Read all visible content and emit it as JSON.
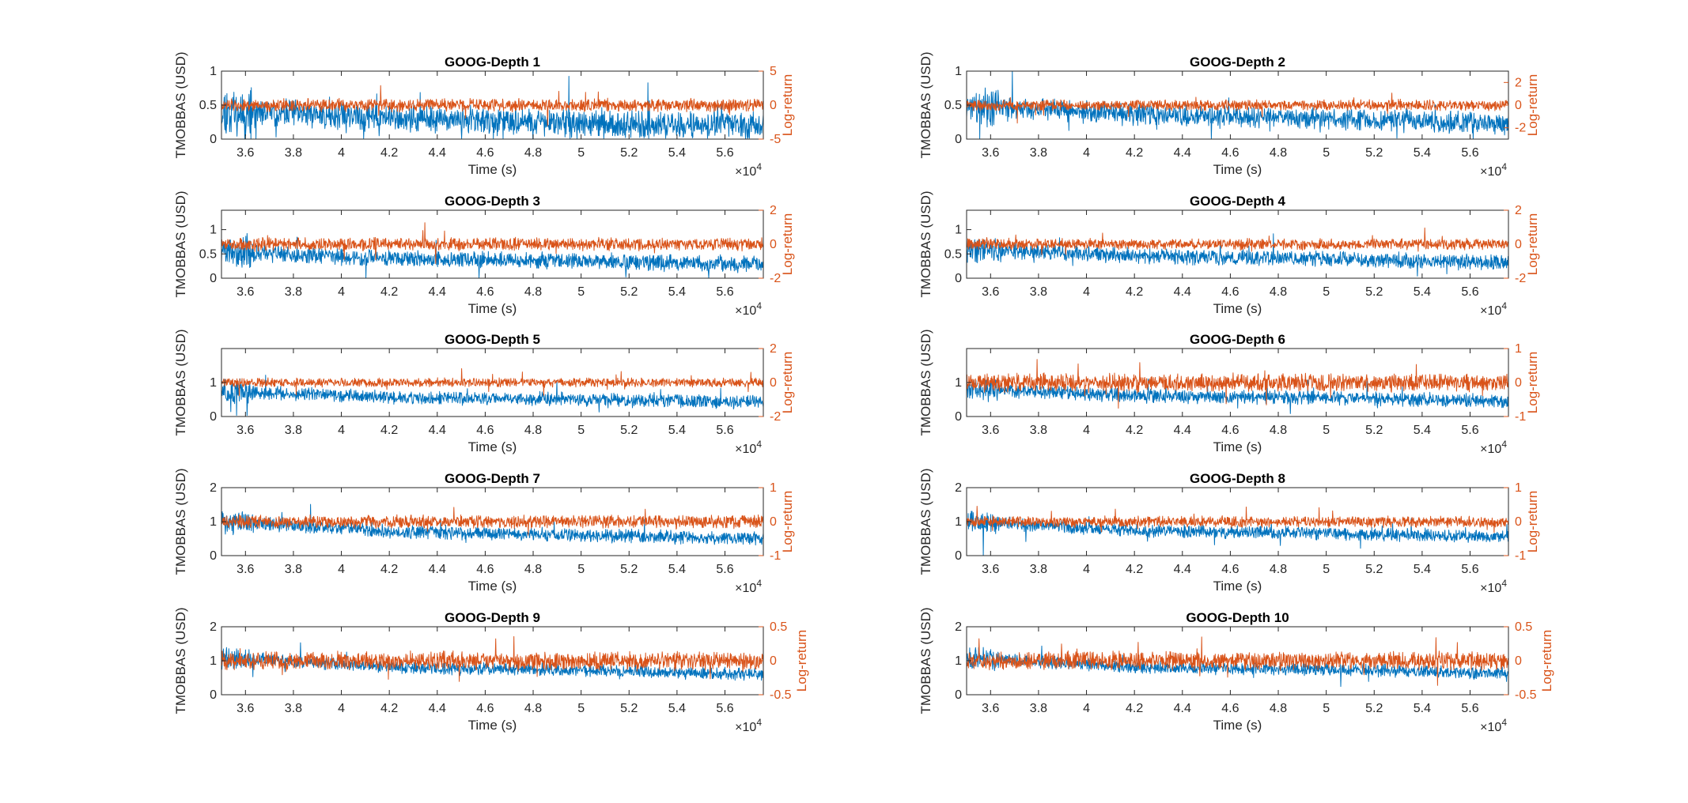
{
  "figure": {
    "background": "#ffffff",
    "colors": {
      "left_series": "#0072BD",
      "right_series": "#D95319",
      "axis": "#262626"
    }
  },
  "chart_data": [
    {
      "type": "line",
      "title": "GOOG-Depth 1",
      "xlabel": "Time (s)",
      "ylabel_left": "TMOBBAS (USD)",
      "ylabel_right": "Log-return",
      "xlim": [
        35000,
        57600
      ],
      "x_ticks": [
        36000,
        38000,
        40000,
        42000,
        44000,
        46000,
        48000,
        50000,
        52000,
        54000,
        56000
      ],
      "x_tick_labels": [
        "3.6",
        "3.8",
        "4",
        "4.2",
        "4.4",
        "4.6",
        "4.8",
        "5",
        "5.2",
        "5.4",
        "5.6"
      ],
      "x_exponent": "×10^4",
      "ylim_left": [
        0,
        1
      ],
      "y_ticks_left": [
        0,
        0.5,
        1
      ],
      "y_tick_labels_left": [
        "0",
        "0.5",
        "1"
      ],
      "ylim_right": [
        -5,
        5
      ],
      "y_ticks_right": [
        -5,
        0,
        5
      ],
      "y_tick_labels_right": [
        "-5",
        "0",
        "5"
      ],
      "series": [
        {
          "name": "TMOBBAS",
          "axis": "left",
          "baseline": [
            0.42,
            0.3,
            0.22,
            0.2
          ],
          "noise": 0.15,
          "seed": 11
        },
        {
          "name": "Log-return",
          "axis": "right",
          "baseline": [
            0,
            0,
            0,
            0
          ],
          "noise": 0.7,
          "seed": 12
        }
      ]
    },
    {
      "type": "line",
      "title": "GOOG-Depth 2",
      "xlabel": "Time (s)",
      "ylabel_left": "TMOBBAS (USD)",
      "ylabel_right": "Log-return",
      "xlim": [
        35000,
        57600
      ],
      "x_ticks": [
        36000,
        38000,
        40000,
        42000,
        44000,
        46000,
        48000,
        50000,
        52000,
        54000,
        56000
      ],
      "x_tick_labels": [
        "3.6",
        "3.8",
        "4",
        "4.2",
        "4.4",
        "4.6",
        "4.8",
        "5",
        "5.2",
        "5.4",
        "5.6"
      ],
      "x_exponent": "×10^4",
      "ylim_left": [
        0,
        1
      ],
      "y_ticks_left": [
        0,
        0.5,
        1
      ],
      "y_tick_labels_left": [
        "0",
        "0.5",
        "1"
      ],
      "ylim_right": [
        -3,
        3
      ],
      "y_ticks_right": [
        -2,
        0,
        2
      ],
      "y_tick_labels_right": [
        "-2",
        "0",
        "2"
      ],
      "series": [
        {
          "name": "TMOBBAS",
          "axis": "left",
          "baseline": [
            0.5,
            0.35,
            0.3,
            0.22
          ],
          "noise": 0.12,
          "seed": 21
        },
        {
          "name": "Log-return",
          "axis": "right",
          "baseline": [
            0,
            0,
            0,
            0
          ],
          "noise": 0.35,
          "seed": 22
        }
      ]
    },
    {
      "type": "line",
      "title": "GOOG-Depth 3",
      "xlabel": "Time (s)",
      "ylabel_left": "TMOBBAS (USD)",
      "ylabel_right": "Log-return",
      "xlim": [
        35000,
        57600
      ],
      "x_ticks": [
        36000,
        38000,
        40000,
        42000,
        44000,
        46000,
        48000,
        50000,
        52000,
        54000,
        56000
      ],
      "x_tick_labels": [
        "3.6",
        "3.8",
        "4",
        "4.2",
        "4.4",
        "4.6",
        "4.8",
        "5",
        "5.2",
        "5.4",
        "5.6"
      ],
      "x_exponent": "×10^4",
      "ylim_left": [
        0,
        1.4
      ],
      "y_ticks_left": [
        0,
        0.5,
        1
      ],
      "y_tick_labels_left": [
        "0",
        "0.5",
        "1"
      ],
      "ylim_right": [
        -2,
        2
      ],
      "y_ticks_right": [
        -2,
        0,
        2
      ],
      "y_tick_labels_right": [
        "-2",
        "0",
        "2"
      ],
      "series": [
        {
          "name": "TMOBBAS",
          "axis": "left",
          "baseline": [
            0.55,
            0.4,
            0.35,
            0.28
          ],
          "noise": 0.13,
          "seed": 31
        },
        {
          "name": "Log-return",
          "axis": "right",
          "baseline": [
            0,
            0,
            0,
            0
          ],
          "noise": 0.28,
          "seed": 32
        }
      ]
    },
    {
      "type": "line",
      "title": "GOOG-Depth 4",
      "xlabel": "Time (s)",
      "ylabel_left": "TMOBBAS (USD)",
      "ylabel_right": "Log-return",
      "xlim": [
        35000,
        57600
      ],
      "x_ticks": [
        36000,
        38000,
        40000,
        42000,
        44000,
        46000,
        48000,
        50000,
        52000,
        54000,
        56000
      ],
      "x_tick_labels": [
        "3.6",
        "3.8",
        "4",
        "4.2",
        "4.4",
        "4.6",
        "4.8",
        "5",
        "5.2",
        "5.4",
        "5.6"
      ],
      "x_exponent": "×10^4",
      "ylim_left": [
        0,
        1.4
      ],
      "y_ticks_left": [
        0,
        0.5,
        1
      ],
      "y_tick_labels_left": [
        "0",
        "0.5",
        "1"
      ],
      "ylim_right": [
        -2,
        2
      ],
      "y_ticks_right": [
        -2,
        0,
        2
      ],
      "y_tick_labels_right": [
        "-2",
        "0",
        "2"
      ],
      "series": [
        {
          "name": "TMOBBAS",
          "axis": "left",
          "baseline": [
            0.6,
            0.45,
            0.4,
            0.32
          ],
          "noise": 0.12,
          "seed": 41
        },
        {
          "name": "Log-return",
          "axis": "right",
          "baseline": [
            0,
            0,
            0,
            0
          ],
          "noise": 0.24,
          "seed": 42
        }
      ]
    },
    {
      "type": "line",
      "title": "GOOG-Depth 5",
      "xlabel": "Time (s)",
      "ylabel_left": "TMOBBAS (USD)",
      "ylabel_right": "Log-return",
      "xlim": [
        35000,
        57600
      ],
      "x_ticks": [
        36000,
        38000,
        40000,
        42000,
        44000,
        46000,
        48000,
        50000,
        52000,
        54000,
        56000
      ],
      "x_tick_labels": [
        "3.6",
        "3.8",
        "4",
        "4.2",
        "4.4",
        "4.6",
        "4.8",
        "5",
        "5.2",
        "5.4",
        "5.6"
      ],
      "x_exponent": "×10^4",
      "ylim_left": [
        0,
        2
      ],
      "y_ticks_left": [
        0,
        1
      ],
      "y_tick_labels_left": [
        "0",
        "1"
      ],
      "ylim_right": [
        -2,
        2
      ],
      "y_ticks_right": [
        -2,
        0,
        2
      ],
      "y_tick_labels_right": [
        "-2",
        "0",
        "2"
      ],
      "series": [
        {
          "name": "TMOBBAS",
          "axis": "left",
          "baseline": [
            0.75,
            0.55,
            0.5,
            0.42
          ],
          "noise": 0.15,
          "seed": 51
        },
        {
          "name": "Log-return",
          "axis": "right",
          "baseline": [
            0,
            0,
            0,
            0
          ],
          "noise": 0.2,
          "seed": 52
        }
      ]
    },
    {
      "type": "line",
      "title": "GOOG-Depth 6",
      "xlabel": "Time (s)",
      "ylabel_left": "TMOBBAS (USD)",
      "ylabel_right": "Log-return",
      "xlim": [
        35000,
        57600
      ],
      "x_ticks": [
        36000,
        38000,
        40000,
        42000,
        44000,
        46000,
        48000,
        50000,
        52000,
        54000,
        56000
      ],
      "x_tick_labels": [
        "3.6",
        "3.8",
        "4",
        "4.2",
        "4.4",
        "4.6",
        "4.8",
        "5",
        "5.2",
        "5.4",
        "5.6"
      ],
      "x_exponent": "×10^4",
      "ylim_left": [
        0,
        2
      ],
      "y_ticks_left": [
        0,
        1
      ],
      "y_tick_labels_left": [
        "0",
        "1"
      ],
      "ylim_right": [
        -1,
        1
      ],
      "y_ticks_right": [
        -1,
        0,
        1
      ],
      "y_tick_labels_right": [
        "-1",
        "0",
        "1"
      ],
      "series": [
        {
          "name": "TMOBBAS",
          "axis": "left",
          "baseline": [
            0.8,
            0.6,
            0.55,
            0.45
          ],
          "noise": 0.15,
          "seed": 61
        },
        {
          "name": "Log-return",
          "axis": "right",
          "baseline": [
            0,
            0,
            0,
            0
          ],
          "noise": 0.2,
          "seed": 62
        }
      ]
    },
    {
      "type": "line",
      "title": "GOOG-Depth 7",
      "xlabel": "Time (s)",
      "ylabel_left": "TMOBBAS (USD)",
      "ylabel_right": "Log-return",
      "xlim": [
        35000,
        57600
      ],
      "x_ticks": [
        36000,
        38000,
        40000,
        42000,
        44000,
        46000,
        48000,
        50000,
        52000,
        54000,
        56000
      ],
      "x_tick_labels": [
        "3.6",
        "3.8",
        "4",
        "4.2",
        "4.4",
        "4.6",
        "4.8",
        "5",
        "5.2",
        "5.4",
        "5.6"
      ],
      "x_exponent": "×10^4",
      "ylim_left": [
        0,
        2
      ],
      "y_ticks_left": [
        0,
        1,
        2
      ],
      "y_tick_labels_left": [
        "0",
        "1",
        "2"
      ],
      "ylim_right": [
        -1,
        1
      ],
      "y_ticks_right": [
        -1,
        0,
        1
      ],
      "y_tick_labels_right": [
        "-1",
        "0",
        "1"
      ],
      "series": [
        {
          "name": "TMOBBAS",
          "axis": "left",
          "baseline": [
            1.0,
            0.7,
            0.6,
            0.5
          ],
          "noise": 0.15,
          "seed": 71
        },
        {
          "name": "Log-return",
          "axis": "right",
          "baseline": [
            0,
            0,
            0,
            0
          ],
          "noise": 0.14,
          "seed": 72
        }
      ]
    },
    {
      "type": "line",
      "title": "GOOG-Depth 8",
      "xlabel": "Time (s)",
      "ylabel_left": "TMOBBAS (USD)",
      "ylabel_right": "Log-return",
      "xlim": [
        35000,
        57600
      ],
      "x_ticks": [
        36000,
        38000,
        40000,
        42000,
        44000,
        46000,
        48000,
        50000,
        52000,
        54000,
        56000
      ],
      "x_tick_labels": [
        "3.6",
        "3.8",
        "4",
        "4.2",
        "4.4",
        "4.6",
        "4.8",
        "5",
        "5.2",
        "5.4",
        "5.6"
      ],
      "x_exponent": "×10^4",
      "ylim_left": [
        0,
        2
      ],
      "y_ticks_left": [
        0,
        1,
        2
      ],
      "y_tick_labels_left": [
        "0",
        "1",
        "2"
      ],
      "ylim_right": [
        -1,
        1
      ],
      "y_ticks_right": [
        -1,
        0,
        1
      ],
      "y_tick_labels_right": [
        "-1",
        "0",
        "1"
      ],
      "series": [
        {
          "name": "TMOBBAS",
          "axis": "left",
          "baseline": [
            1.0,
            0.72,
            0.65,
            0.55
          ],
          "noise": 0.14,
          "seed": 81
        },
        {
          "name": "Log-return",
          "axis": "right",
          "baseline": [
            0,
            0,
            0,
            0
          ],
          "noise": 0.12,
          "seed": 82
        }
      ]
    },
    {
      "type": "line",
      "title": "GOOG-Depth 9",
      "xlabel": "Time (s)",
      "ylabel_left": "TMOBBAS (USD)",
      "ylabel_right": "Log-return",
      "xlim": [
        35000,
        57600
      ],
      "x_ticks": [
        36000,
        38000,
        40000,
        42000,
        44000,
        46000,
        48000,
        50000,
        52000,
        54000,
        56000
      ],
      "x_tick_labels": [
        "3.6",
        "3.8",
        "4",
        "4.2",
        "4.4",
        "4.6",
        "4.8",
        "5",
        "5.2",
        "5.4",
        "5.6"
      ],
      "x_exponent": "×10^4",
      "ylim_left": [
        0,
        2
      ],
      "y_ticks_left": [
        0,
        1,
        2
      ],
      "y_tick_labels_left": [
        "0",
        "1",
        "2"
      ],
      "ylim_right": [
        -0.5,
        0.5
      ],
      "y_ticks_right": [
        -0.5,
        0,
        0.5
      ],
      "y_tick_labels_right": [
        "-0.5",
        "0",
        "0.5"
      ],
      "series": [
        {
          "name": "TMOBBAS",
          "axis": "left",
          "baseline": [
            1.1,
            0.8,
            0.72,
            0.6
          ],
          "noise": 0.14,
          "seed": 91
        },
        {
          "name": "Log-return",
          "axis": "right",
          "baseline": [
            0,
            0,
            0,
            0
          ],
          "noise": 0.1,
          "seed": 92
        }
      ]
    },
    {
      "type": "line",
      "title": "GOOG-Depth 10",
      "xlabel": "Time (s)",
      "ylabel_left": "TMOBBAS (USD)",
      "ylabel_right": "Log-return",
      "xlim": [
        35000,
        57600
      ],
      "x_ticks": [
        36000,
        38000,
        40000,
        42000,
        44000,
        46000,
        48000,
        50000,
        52000,
        54000,
        56000
      ],
      "x_tick_labels": [
        "3.6",
        "3.8",
        "4",
        "4.2",
        "4.4",
        "4.6",
        "4.8",
        "5",
        "5.2",
        "5.4",
        "5.6"
      ],
      "x_exponent": "×10^4",
      "ylim_left": [
        0,
        2
      ],
      "y_ticks_left": [
        0,
        1,
        2
      ],
      "y_tick_labels_left": [
        "0",
        "1",
        "2"
      ],
      "ylim_right": [
        -0.5,
        0.5
      ],
      "y_ticks_right": [
        -0.5,
        0,
        0.5
      ],
      "y_tick_labels_right": [
        "-0.5",
        "0",
        "0.5"
      ],
      "series": [
        {
          "name": "TMOBBAS",
          "axis": "left",
          "baseline": [
            1.1,
            0.8,
            0.75,
            0.62
          ],
          "noise": 0.14,
          "seed": 101
        },
        {
          "name": "Log-return",
          "axis": "right",
          "baseline": [
            0,
            0,
            0,
            0
          ],
          "noise": 0.1,
          "seed": 102
        }
      ]
    }
  ]
}
